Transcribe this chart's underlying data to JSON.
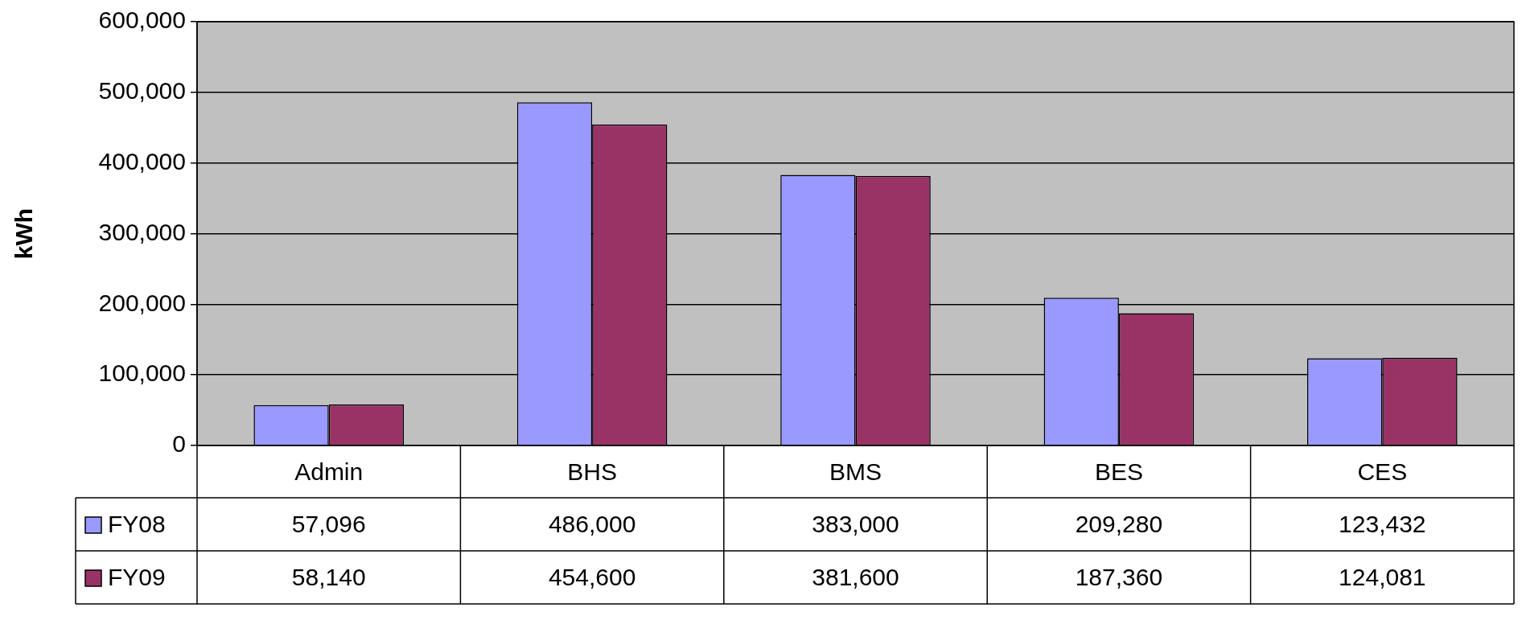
{
  "chart_data": {
    "type": "bar",
    "ylabel": "kWh",
    "categories": [
      "Admin",
      "BHS",
      "BMS",
      "BES",
      "CES"
    ],
    "series": [
      {
        "name": "FY08",
        "color": "#9999ff",
        "values": [
          57096,
          486000,
          383000,
          209280,
          123432
        ],
        "value_labels": [
          "57,096",
          "486,000",
          "383,000",
          "209,280",
          "123,432"
        ]
      },
      {
        "name": "FY09",
        "color": "#993366",
        "values": [
          58140,
          454600,
          381600,
          187360,
          124081
        ],
        "value_labels": [
          "58,140",
          "454,600",
          "381,600",
          "187,360",
          "124,081"
        ]
      }
    ],
    "ylim": [
      0,
      600000
    ],
    "yticks": [
      0,
      {
        "value": 100000,
        "label": "100,000"
      },
      {
        "value": 200000,
        "label": "200,000"
      },
      {
        "value": 300000,
        "label": "300,000"
      },
      {
        "value": 400000,
        "label": "400,000"
      },
      {
        "value": 500000,
        "label": "500,000"
      },
      {
        "value": 600000,
        "label": "600,000"
      }
    ],
    "grid": "y",
    "legend": "bottom"
  }
}
